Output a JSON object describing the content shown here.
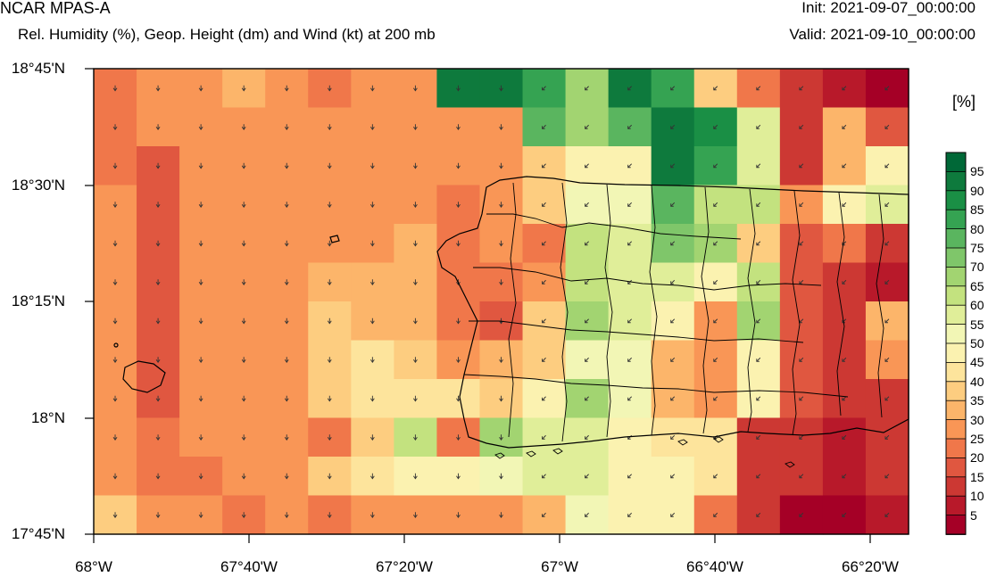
{
  "header": {
    "title": "NCAR MPAS-A",
    "subtitle": "Rel. Humidity (%), Geop. Height (dm) and Wind (kt) at 200 mb",
    "init": "Init: 2021-09-07_00:00:00",
    "valid": "Valid: 2021-09-10_00:00:00"
  },
  "map": {
    "lat_labels": [
      "18°45'N",
      "18°30'N",
      "18°15'N",
      "18°N",
      "17°45'N"
    ],
    "lon_labels": [
      "68°W",
      "67°40'W",
      "67°20'W",
      "67°W",
      "66°40'W",
      "66°20'W"
    ],
    "extent": {
      "lon_min": -68.0,
      "lon_max": -66.25,
      "lat_min": 17.75,
      "lat_max": 18.75
    }
  },
  "colorbar": {
    "unit": "[%]",
    "labels": [
      "95",
      "90",
      "85",
      "80",
      "75",
      "70",
      "65",
      "60",
      "55",
      "50",
      "45",
      "40",
      "35",
      "30",
      "25",
      "20",
      "15",
      "10",
      "5"
    ],
    "colors": [
      "#006837",
      "#0e7a3d",
      "#1a8f45",
      "#35a352",
      "#5ab55f",
      "#7fc66a",
      "#a2d471",
      "#c3e27f",
      "#e0ee99",
      "#f2f6b5",
      "#fbf2b0",
      "#fde49c",
      "#fdcd80",
      "#fcb56a",
      "#f99656",
      "#f0774a",
      "#e05740",
      "#cc3833",
      "#b8192a",
      "#a50026"
    ]
  },
  "grid": {
    "rows": [
      [
        15,
        15,
        14,
        14,
        13,
        14,
        15,
        15,
        15,
        16,
        18,
        18,
        17,
        14,
        12,
        16,
        13,
        2,
        3
      ],
      [
        15,
        15,
        15,
        15,
        15,
        15,
        15,
        15,
        15,
        15,
        16,
        16,
        16,
        16,
        16,
        16,
        16,
        16,
        16
      ],
      [
        15,
        15,
        15,
        15,
        15,
        15,
        15,
        15,
        15,
        15,
        15,
        15,
        15,
        15,
        15,
        15,
        15,
        15,
        15
      ],
      [
        15,
        16,
        15,
        15,
        15,
        15,
        15,
        15,
        15,
        15,
        15,
        15,
        15,
        15,
        15,
        15,
        15,
        15,
        15
      ],
      [
        15,
        16,
        15,
        15,
        15,
        15,
        15,
        15,
        15,
        15,
        15,
        15,
        15,
        15,
        15,
        15,
        15,
        15,
        15
      ],
      [
        15,
        16,
        15,
        15,
        15,
        15,
        15,
        15,
        16,
        16,
        16,
        16,
        16,
        16,
        16,
        16,
        16,
        16,
        16
      ],
      [
        15,
        16,
        15,
        15,
        15,
        13,
        13,
        15,
        16,
        16,
        16,
        16,
        16,
        16,
        16,
        16,
        16,
        16,
        16
      ],
      [
        15,
        16,
        15,
        15,
        15,
        13,
        13,
        15,
        16,
        16,
        16,
        16,
        16,
        16,
        16,
        16,
        16,
        16,
        16
      ],
      [
        15,
        16,
        15,
        15,
        15,
        13,
        13,
        15,
        16,
        16,
        16,
        16,
        16,
        16,
        16,
        16,
        16,
        16,
        16
      ],
      [
        15,
        16,
        15,
        15,
        15,
        13,
        13,
        15,
        16,
        16,
        16,
        16,
        16,
        16,
        16,
        16,
        16,
        16,
        16
      ],
      [
        15,
        16,
        15,
        15,
        15,
        13,
        13,
        15,
        16,
        16,
        16,
        16,
        16,
        16,
        16,
        16,
        16,
        16,
        16
      ],
      [
        15,
        16,
        15,
        15,
        15,
        13,
        13,
        15,
        16,
        16,
        16,
        16,
        16,
        16,
        16,
        16,
        16,
        16,
        16
      ]
    ]
  },
  "chart_data": {
    "type": "heatmap",
    "title": "Rel. Humidity (%), Geop. Height (dm) and Wind (kt) at 200 mb",
    "x_unit": "degrees longitude",
    "y_unit": "degrees latitude",
    "lon_start": -68.0,
    "lon_step": 0.1,
    "lat_start": 18.75,
    "lat_step": -0.0833,
    "rh_percent": [
      [
        25,
        30,
        30,
        35,
        30,
        25,
        30,
        30,
        95,
        95,
        85,
        70,
        95,
        85,
        40,
        25,
        15,
        10,
        5
      ],
      [
        25,
        30,
        30,
        30,
        30,
        30,
        30,
        30,
        30,
        30,
        80,
        70,
        80,
        95,
        90,
        60,
        15,
        35,
        20
      ],
      [
        25,
        20,
        30,
        30,
        30,
        30,
        30,
        30,
        30,
        30,
        40,
        50,
        50,
        95,
        85,
        60,
        15,
        35,
        50
      ],
      [
        30,
        20,
        30,
        30,
        30,
        30,
        30,
        30,
        25,
        30,
        40,
        55,
        55,
        80,
        65,
        65,
        30,
        50,
        60
      ],
      [
        30,
        20,
        30,
        30,
        30,
        30,
        30,
        35,
        25,
        30,
        25,
        65,
        60,
        75,
        70,
        40,
        20,
        25,
        15
      ],
      [
        30,
        20,
        30,
        30,
        30,
        35,
        35,
        35,
        25,
        25,
        30,
        65,
        60,
        60,
        50,
        65,
        20,
        15,
        10
      ],
      [
        30,
        20,
        30,
        30,
        30,
        40,
        35,
        35,
        25,
        20,
        40,
        70,
        60,
        50,
        30,
        70,
        20,
        15,
        35
      ],
      [
        30,
        20,
        30,
        30,
        30,
        40,
        45,
        40,
        30,
        35,
        40,
        55,
        55,
        35,
        30,
        50,
        20,
        15,
        30
      ],
      [
        30,
        20,
        30,
        30,
        30,
        40,
        45,
        45,
        45,
        40,
        50,
        70,
        55,
        35,
        30,
        50,
        20,
        15,
        15
      ],
      [
        30,
        25,
        30,
        30,
        30,
        25,
        40,
        65,
        25,
        70,
        60,
        60,
        50,
        45,
        45,
        15,
        15,
        10,
        15
      ],
      [
        30,
        25,
        25,
        30,
        30,
        40,
        45,
        50,
        50,
        55,
        60,
        60,
        50,
        50,
        45,
        15,
        15,
        10,
        15
      ],
      [
        40,
        30,
        30,
        25,
        30,
        25,
        30,
        30,
        30,
        30,
        35,
        55,
        50,
        50,
        25,
        15,
        5,
        5,
        10
      ]
    ]
  }
}
